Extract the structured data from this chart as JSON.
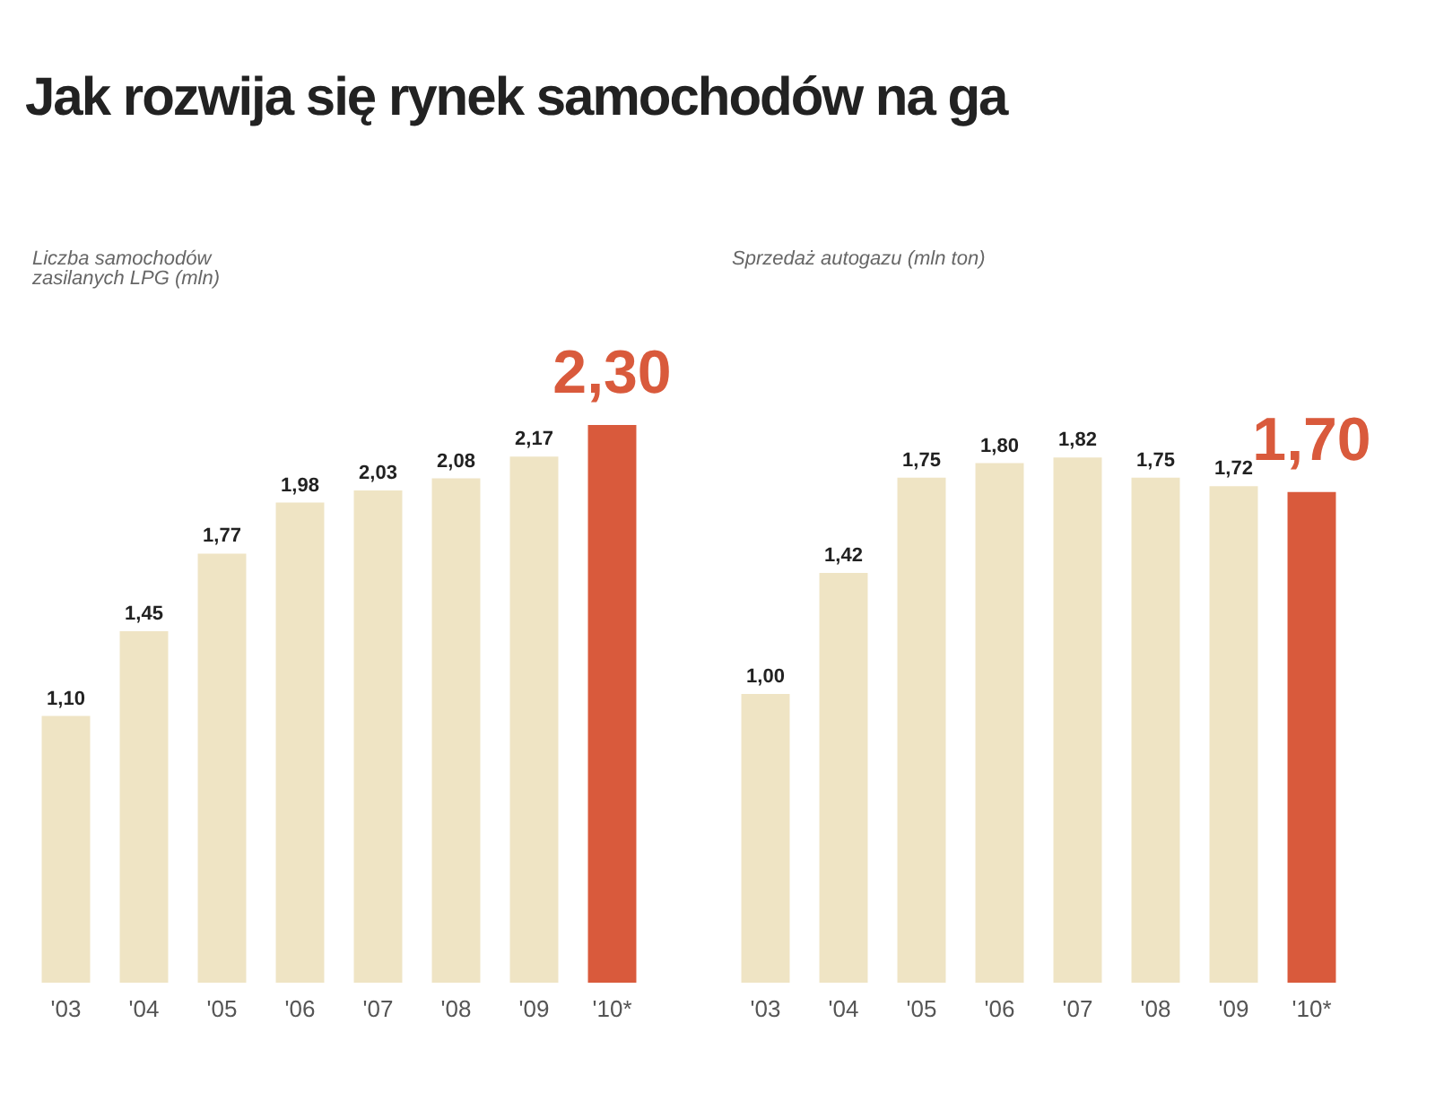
{
  "chart_data": [
    {
      "type": "bar",
      "title": "Jak rozwija się rynek samochodów na ga",
      "subtitle": "Liczba samochodów zasilanych LPG (mln)",
      "categories": [
        "'03",
        "'04",
        "'05",
        "'06",
        "'07",
        "'08",
        "'09",
        "'10*"
      ],
      "values": [
        1.1,
        1.45,
        1.77,
        1.98,
        2.03,
        2.08,
        2.17,
        2.3
      ],
      "colors": [
        "#efe4c4",
        "#efe4c4",
        "#efe4c4",
        "#efe4c4",
        "#efe4c4",
        "#efe4c4",
        "#efe4c4",
        "#d95a3c"
      ],
      "value_labels": [
        "1,10",
        "1,45",
        "1,77",
        "1,98",
        "2,03",
        "2,08",
        "2,17",
        "2,30"
      ]
    },
    {
      "type": "bar",
      "subtitle": "Sprzedaż autogazu (mln ton)",
      "categories": [
        "'03",
        "'04",
        "'05",
        "'06",
        "'07",
        "'08",
        "'09",
        "'10*"
      ],
      "values": [
        1.0,
        1.42,
        1.75,
        1.8,
        1.82,
        1.75,
        1.72,
        1.7
      ],
      "colors": [
        "#efe4c4",
        "#efe4c4",
        "#efe4c4",
        "#efe4c4",
        "#efe4c4",
        "#efe4c4",
        "#efe4c4",
        "#d95a3c"
      ],
      "value_labels": [
        "1,00",
        "1,42",
        "1,75",
        "1,80",
        "1,82",
        "1,75",
        "1,72",
        "1,70"
      ]
    }
  ]
}
